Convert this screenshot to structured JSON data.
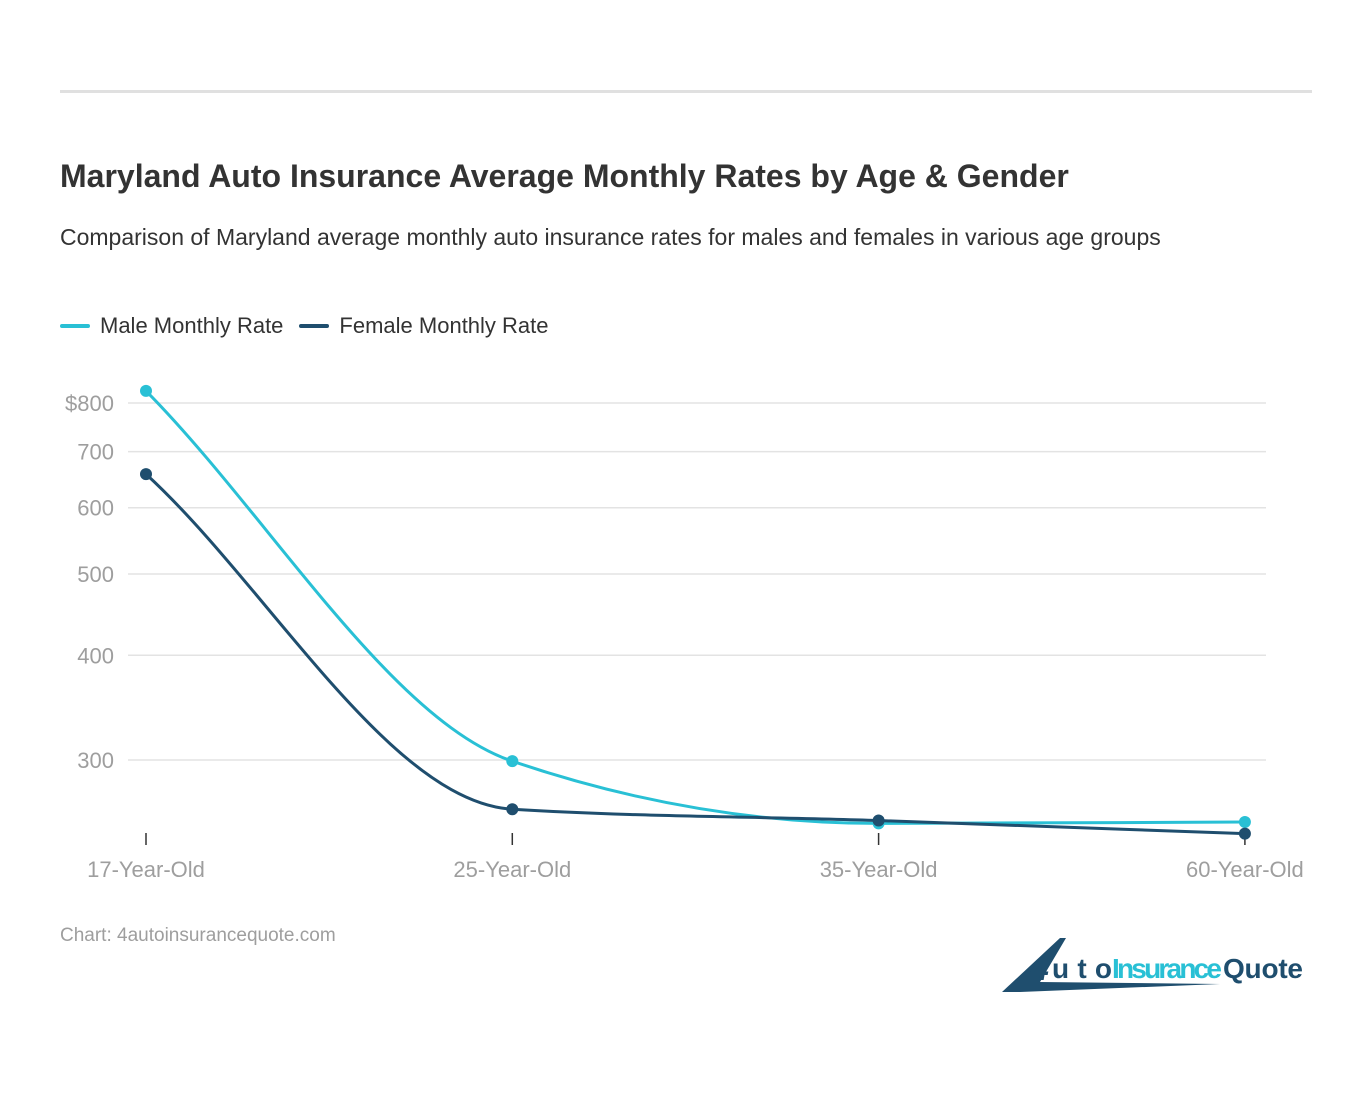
{
  "title": "Maryland Auto Insurance Average Monthly Rates by Age & Gender",
  "subtitle": "Comparison of Maryland average monthly auto insurance rates for males and females in various age groups",
  "source": "Chart: 4autoinsurancequote.com",
  "logo_text": "4AutoInsuranceQuote",
  "colors": {
    "male": "#29c0d5",
    "female": "#1f4e6e"
  },
  "chart_data": {
    "type": "line",
    "title": "Maryland Auto Insurance Average Monthly Rates by Age & Gender",
    "categories": [
      "17-Year-Old",
      "25-Year-Old",
      "35-Year-Old",
      "60-Year-Old"
    ],
    "series": [
      {
        "name": "Male Monthly Rate",
        "values": [
          827,
          299,
          252,
          253
        ]
      },
      {
        "name": "Female Monthly Rate",
        "values": [
          658,
          262,
          254,
          245
        ]
      }
    ],
    "y_scale": "log",
    "y_ticks": [
      300,
      400,
      500,
      600,
      700,
      800
    ],
    "y_tick_labels": [
      "300",
      "400",
      "500",
      "600",
      "700",
      "$800"
    ],
    "grid": true,
    "legend": "top-left",
    "curve": "smooth"
  }
}
